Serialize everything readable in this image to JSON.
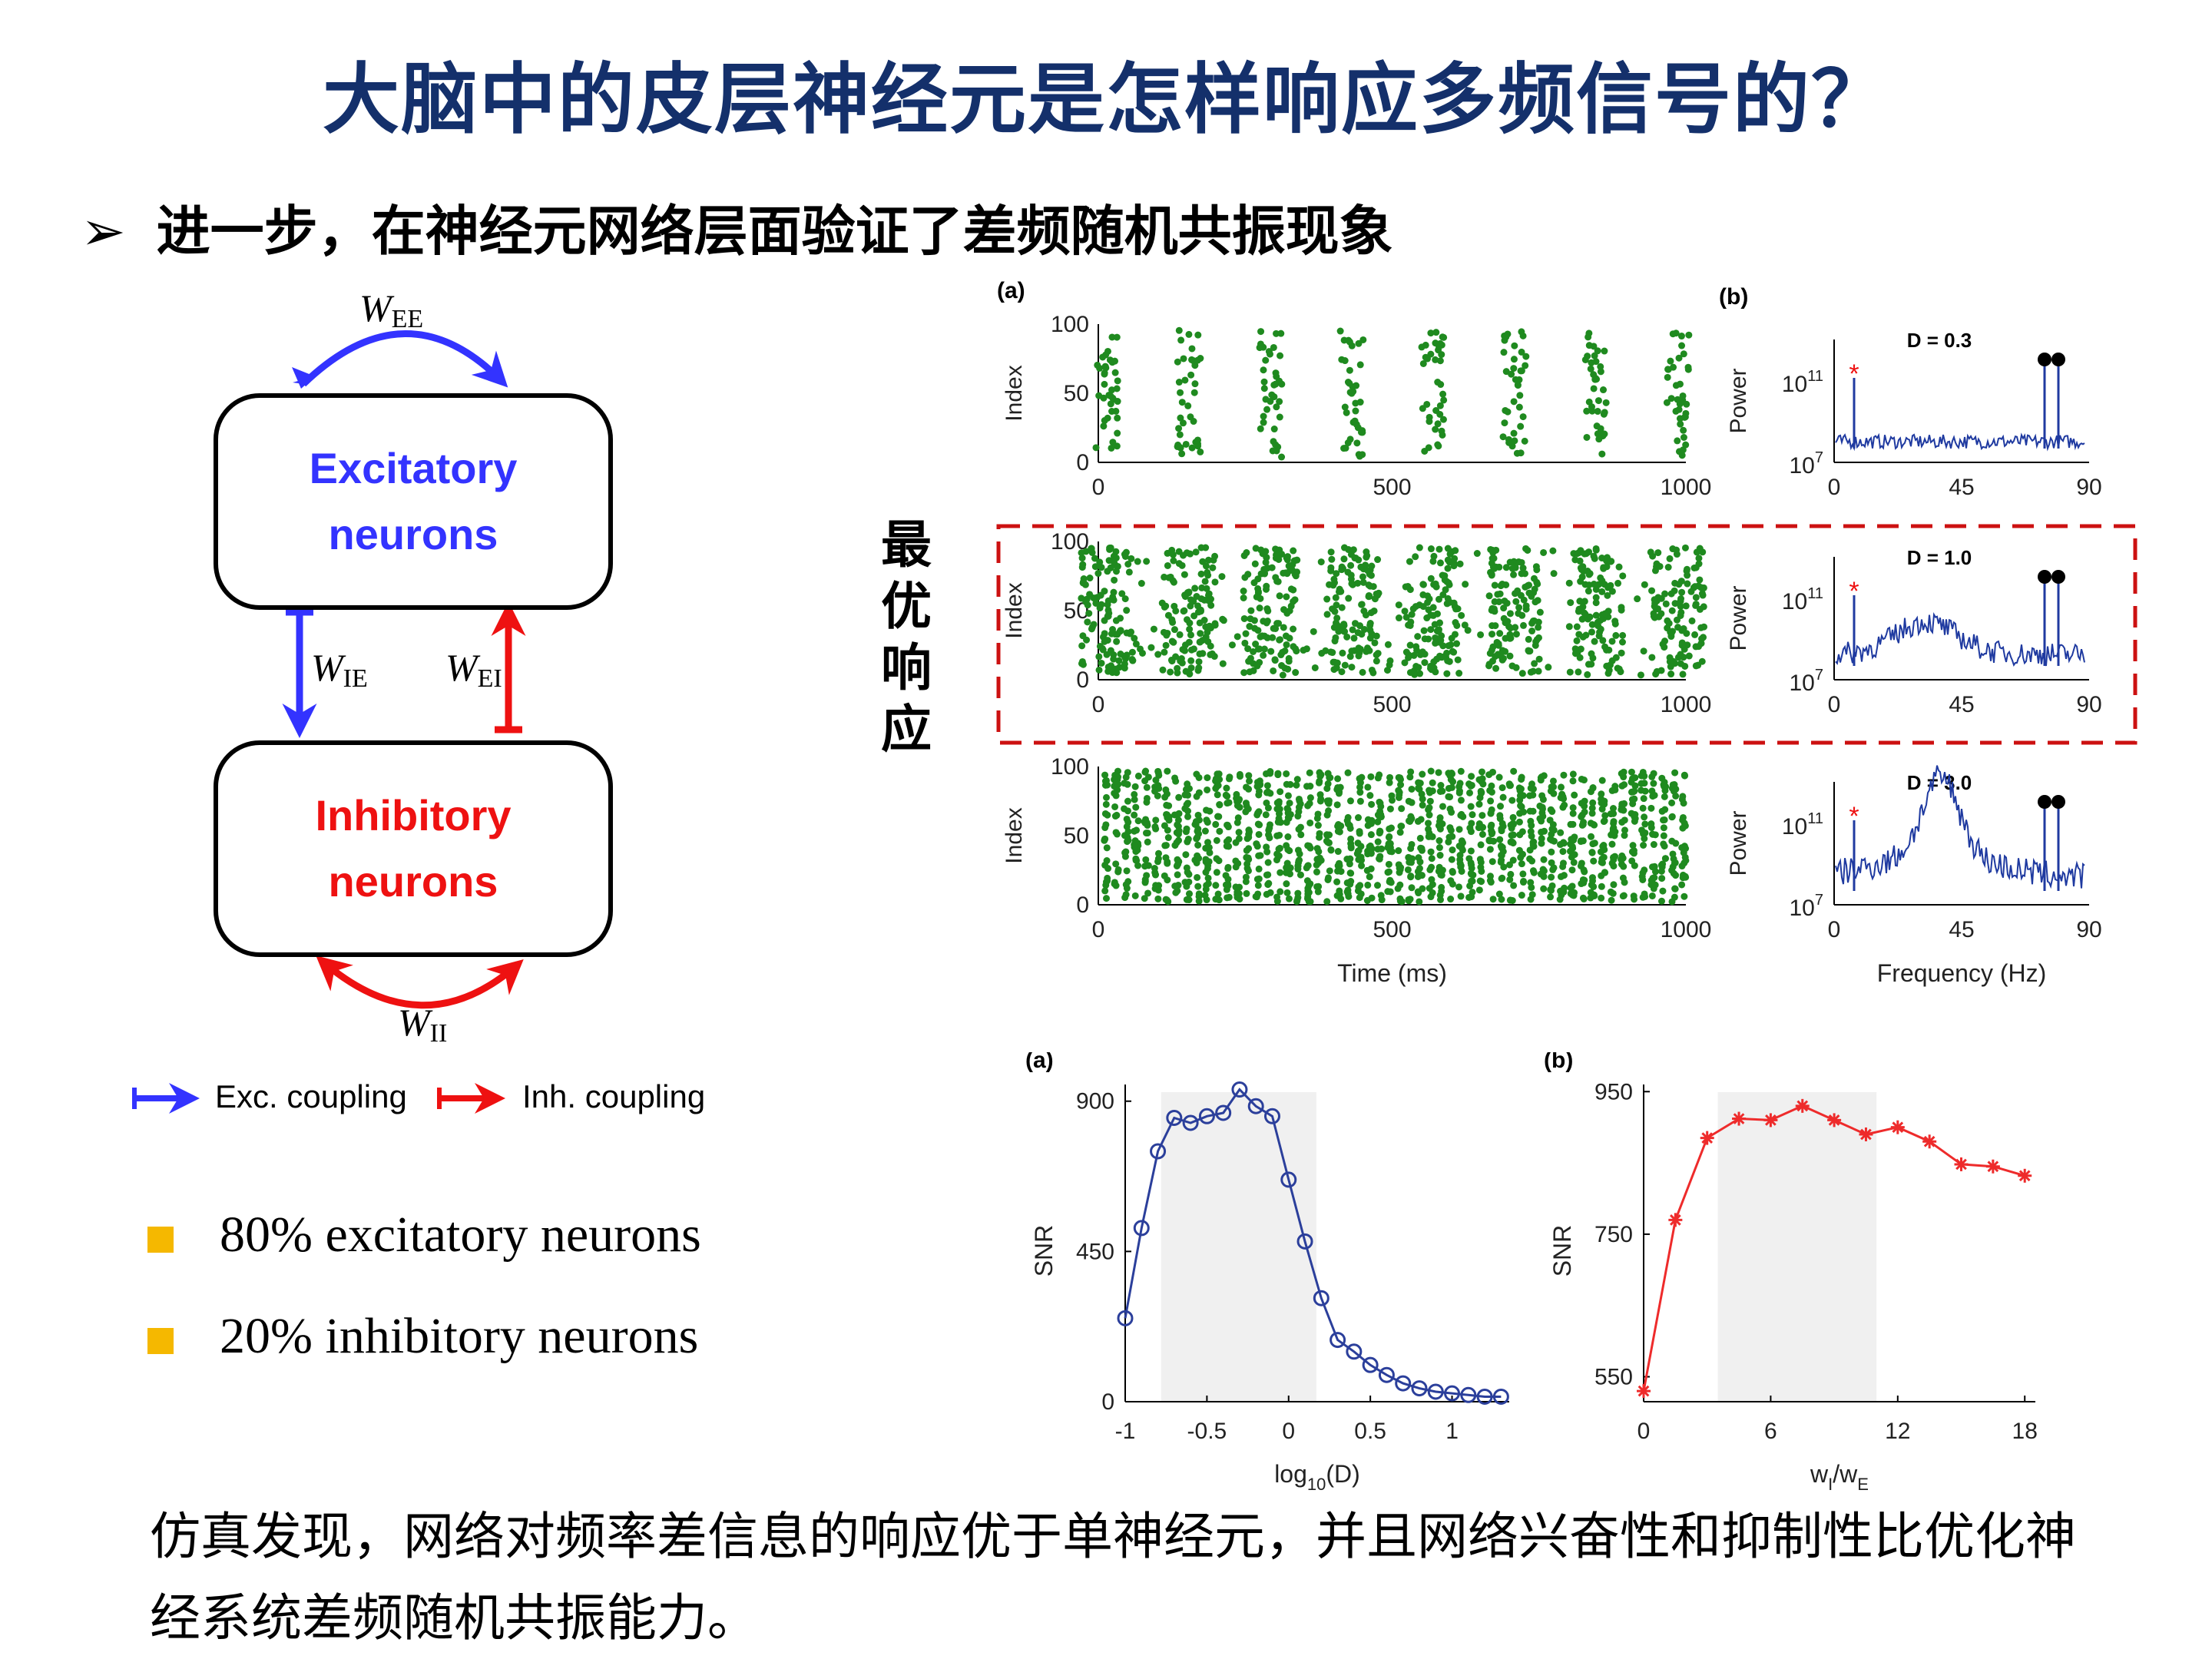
{
  "title": "大脑中的皮层神经元是怎样响应多频信号的？",
  "bullet": {
    "marker": "➢",
    "text": "进一步，在神经元网络层面验证了差频随机共振现象"
  },
  "diagram": {
    "exc_box": [
      "Excitatory",
      "neurons"
    ],
    "inh_box": [
      "Inhibitory",
      "neurons"
    ],
    "w_ee": {
      "base": "W",
      "sub": "EE"
    },
    "w_ie": {
      "base": "W",
      "sub": "IE"
    },
    "w_ei": {
      "base": "W",
      "sub": "EI"
    },
    "w_ii": {
      "base": "W",
      "sub": "II"
    },
    "legend_exc": "Exc. coupling",
    "legend_inh": "Inh.  coupling",
    "colors": {
      "exc": "#3333ff",
      "inh": "#ee1111"
    }
  },
  "stats": [
    "80% excitatory neurons",
    "20% inhibitory neurons"
  ],
  "optimal_label": [
    "最",
    "优",
    "响",
    "应"
  ],
  "raster": {
    "panel_label": "(a)",
    "ylabel": "Index",
    "xlabel": "Time (ms)",
    "yticks": [
      "100",
      "50",
      "0"
    ],
    "xticks": [
      "0",
      "500",
      "1000"
    ]
  },
  "spectrum": {
    "panel_label": "(b)",
    "ylabel": "Power",
    "xlabel": "Frequency (Hz)",
    "yticks": [
      {
        "base": "10",
        "exp": "11"
      },
      {
        "base": "10",
        "exp": "7"
      }
    ],
    "xticks": [
      "0",
      "45",
      "90"
    ],
    "d_labels": [
      "D = 0.3",
      "D = 1.0",
      "D = 3.0"
    ]
  },
  "chart_data": [
    {
      "type": "line",
      "panel_label": "(a)",
      "xlabel": "log10(D)",
      "ylabel": "SNR",
      "xlim": [
        -1,
        1.35
      ],
      "ylim": [
        0,
        950
      ],
      "xticks": [
        "-1",
        "-0.5",
        "0",
        "0.5",
        "1"
      ],
      "yticks": [
        "900",
        "450",
        "0"
      ],
      "shaded_x": [
        -0.78,
        0.17
      ],
      "color": "#2b3f9b",
      "marker": "circle",
      "x": [
        -1.0,
        -0.9,
        -0.8,
        -0.7,
        -0.6,
        -0.5,
        -0.4,
        -0.3,
        -0.2,
        -0.1,
        0.0,
        0.1,
        0.2,
        0.3,
        0.4,
        0.5,
        0.6,
        0.7,
        0.8,
        0.9,
        1.0,
        1.1,
        1.2,
        1.3
      ],
      "y": [
        250,
        520,
        750,
        850,
        835,
        855,
        865,
        935,
        885,
        855,
        665,
        480,
        310,
        185,
        150,
        110,
        80,
        55,
        40,
        30,
        25,
        20,
        15,
        15
      ]
    },
    {
      "type": "line",
      "panel_label": "(b)",
      "xlabel": "wI/wE",
      "xlabel_base": "w",
      "xlabel_sub1": "I",
      "xlabel_sep": "/w",
      "xlabel_sub2": "E",
      "ylabel": "SNR",
      "xlim": [
        0,
        18.5
      ],
      "ylim": [
        515,
        960
      ],
      "xticks": [
        "0",
        "6",
        "12",
        "18"
      ],
      "yticks": [
        "950",
        "750",
        "550"
      ],
      "shaded_x": [
        3.5,
        11
      ],
      "color": "#ee2b2b",
      "marker": "asterisk",
      "x": [
        0,
        1.5,
        3,
        4.5,
        6,
        7.5,
        9,
        10.5,
        12,
        13.5,
        15,
        16.5,
        18
      ],
      "y": [
        530,
        770,
        885,
        912,
        910,
        930,
        910,
        890,
        900,
        880,
        848,
        845,
        832
      ]
    }
  ],
  "conclusion": "仿真发现，网络对频率差信息的响应优于单神经元，并且网络兴奋性和抑制性比优化神经系统差频随机共振能力。"
}
